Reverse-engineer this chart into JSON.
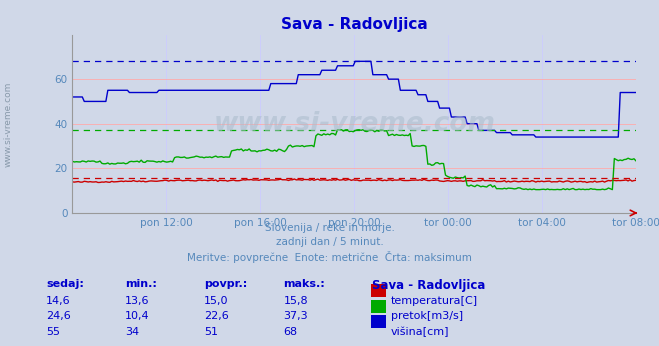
{
  "title": "Sava - Radovljica",
  "title_color": "#0000cc",
  "background_color": "#d0d8e8",
  "plot_bg_color": "#d0d8e8",
  "grid_color_h": "#ffaaaa",
  "grid_color_v": "#ccccff",
  "subtitle_lines": [
    "Slovenija / reke in morje.",
    "zadnji dan / 5 minut.",
    "Meritve: povprečne  Enote: metrične  Črta: maksimum"
  ],
  "subtitle_color": "#5588bb",
  "ylim": [
    0,
    80
  ],
  "yticks": [
    0,
    20,
    40,
    60
  ],
  "xticklabels": [
    "pon 12:00",
    "pon 16:00",
    "pon 20:00",
    "tor 00:00",
    "tor 04:00",
    "tor 08:00"
  ],
  "xtick_color": "#5588bb",
  "ytick_color": "#5588bb",
  "watermark": "www.si-vreme.com",
  "watermark_color": "#aabbcc",
  "legend_title": "Sava - Radovljica",
  "legend_entries": [
    {
      "label": "temperatura[C]",
      "color": "#cc0000"
    },
    {
      "label": "pretok[m3/s]",
      "color": "#00aa00"
    },
    {
      "label": "višina[cm]",
      "color": "#0000cc"
    }
  ],
  "table_headers": [
    "sedaj:",
    "min.:",
    "povpr.:",
    "maks.:"
  ],
  "table_data": [
    [
      "14,6",
      "13,6",
      "15,0",
      "15,8"
    ],
    [
      "24,6",
      "10,4",
      "22,6",
      "37,3"
    ],
    [
      "55",
      "34",
      "51",
      "68"
    ]
  ],
  "table_color": "#0000cc",
  "ref_temperatura_max": 15.8,
  "ref_pretok_max": 37.3,
  "ref_visina_max": 68,
  "n_points": 288,
  "temperatura_min": 13.6,
  "temperatura_max": 15.8,
  "pretok_min": 10.4,
  "pretok_max": 37.3,
  "visina_min": 34,
  "visina_max": 68
}
